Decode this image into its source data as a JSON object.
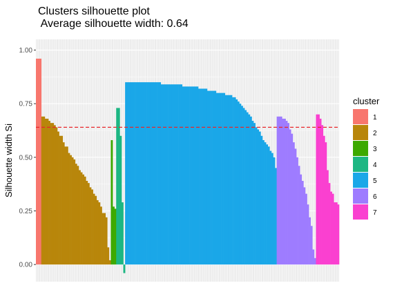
{
  "chart_data": {
    "type": "bar",
    "title": "Clusters silhouette plot",
    "subtitle": " Average silhouette width: 0.64",
    "ylabel": "Silhouette width Si",
    "xlabel": "",
    "ylim": [
      -0.08,
      1.05
    ],
    "yticks": [
      0.0,
      0.25,
      0.5,
      0.75,
      1.0
    ],
    "ytick_labels": [
      "0.00",
      "0.25",
      "0.50",
      "0.75",
      "1.00"
    ],
    "grid": true,
    "average_line": {
      "value": 0.64,
      "color": "#e8262a",
      "style": "dashed"
    },
    "legend": {
      "title": "cluster",
      "position": "right"
    },
    "series": [
      {
        "name": "1",
        "color": "#F8766D",
        "values": [
          0.96,
          0.96,
          0.96
        ]
      },
      {
        "name": "2",
        "color": "#B8860B",
        "values": [
          0.69,
          0.69,
          0.68,
          0.68,
          0.67,
          0.66,
          0.66,
          0.65,
          0.64,
          0.62,
          0.6,
          0.6,
          0.57,
          0.55,
          0.55,
          0.52,
          0.51,
          0.5,
          0.49,
          0.47,
          0.46,
          0.44,
          0.43,
          0.42,
          0.41,
          0.39,
          0.38,
          0.36,
          0.35,
          0.33,
          0.32,
          0.3,
          0.29,
          0.27,
          0.24,
          0.24,
          0.22,
          0.08,
          0.02
        ]
      },
      {
        "name": "3",
        "color": "#3DA900",
        "values": [
          0.58,
          0.27,
          0.26
        ]
      },
      {
        "name": "4",
        "color": "#1DB783",
        "values": [
          0.73,
          0.73,
          0.6,
          0.29,
          -0.04
        ]
      },
      {
        "name": "5",
        "color": "#1AA7E8",
        "values": [
          0.85,
          0.85,
          0.85,
          0.85,
          0.85,
          0.85,
          0.85,
          0.85,
          0.85,
          0.85,
          0.85,
          0.85,
          0.85,
          0.85,
          0.85,
          0.85,
          0.85,
          0.85,
          0.85,
          0.85,
          0.84,
          0.84,
          0.84,
          0.84,
          0.84,
          0.84,
          0.84,
          0.84,
          0.84,
          0.84,
          0.84,
          0.84,
          0.83,
          0.83,
          0.83,
          0.83,
          0.83,
          0.83,
          0.83,
          0.83,
          0.83,
          0.82,
          0.82,
          0.82,
          0.82,
          0.82,
          0.81,
          0.81,
          0.81,
          0.81,
          0.81,
          0.8,
          0.8,
          0.8,
          0.8,
          0.8,
          0.79,
          0.79,
          0.79,
          0.79,
          0.78,
          0.78,
          0.77,
          0.76,
          0.75,
          0.74,
          0.73,
          0.72,
          0.71,
          0.7,
          0.69,
          0.67,
          0.66,
          0.64,
          0.63,
          0.62,
          0.6,
          0.58,
          0.57,
          0.56,
          0.55,
          0.53,
          0.52,
          0.5,
          0.45
        ]
      },
      {
        "name": "6",
        "color": "#9E7CFF",
        "values": [
          0.69,
          0.69,
          0.69,
          0.68,
          0.68,
          0.67,
          0.66,
          0.63,
          0.61,
          0.57,
          0.54,
          0.5,
          0.46,
          0.42,
          0.39,
          0.36,
          0.33,
          0.28,
          0.22,
          0.18,
          0.07,
          0.03
        ]
      },
      {
        "name": "7",
        "color": "#FA40D0",
        "values": [
          0.7,
          0.7,
          0.68,
          0.65,
          0.6,
          0.57,
          0.44,
          0.38,
          0.34,
          0.33,
          0.29,
          0.29,
          0.28
        ]
      }
    ]
  }
}
